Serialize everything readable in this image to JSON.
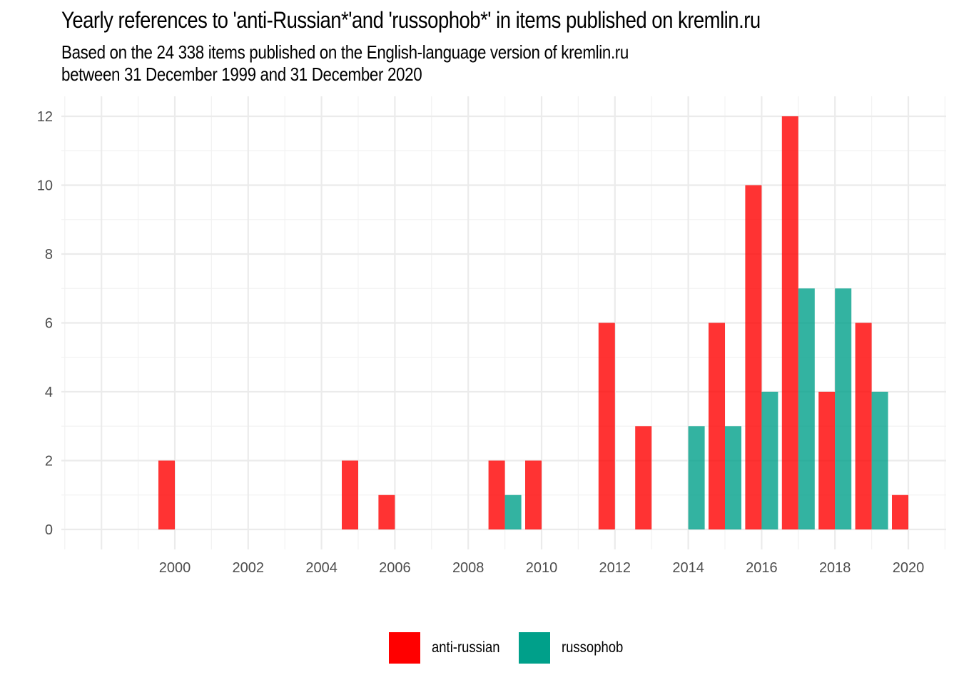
{
  "title": "Yearly references to 'anti-Russian*'and 'russophob*' in items published on kremlin.ru",
  "subtitle_line1": "Based on the 24 338 items published on the English-language version of kremlin.ru",
  "subtitle_line2": "between 31 December 1999 and 31 December 2020",
  "colors": {
    "anti_russian": "#ff0000",
    "russophob": "#00a08a",
    "grid_major": "#ebebeb",
    "grid_minor": "#f2f2f2",
    "tick_text": "#4d4d4d"
  },
  "chart_data": {
    "type": "bar",
    "xlabel": "",
    "ylabel": "",
    "x_ticks": [
      2000,
      2002,
      2004,
      2006,
      2008,
      2010,
      2012,
      2014,
      2016,
      2018,
      2020
    ],
    "y_ticks": [
      0,
      2,
      4,
      6,
      8,
      10,
      12
    ],
    "xlim": [
      1997,
      2021
    ],
    "ylim": [
      0,
      12.4
    ],
    "grid": true,
    "legend_position": "bottom",
    "bar_opacity": 0.8,
    "series": [
      {
        "name": "anti-russian",
        "color": "#ff0000",
        "points": [
          {
            "x": 2000,
            "y": 2
          },
          {
            "x": 2005,
            "y": 2
          },
          {
            "x": 2006,
            "y": 1
          },
          {
            "x": 2009,
            "y": 2
          },
          {
            "x": 2010,
            "y": 2
          },
          {
            "x": 2012,
            "y": 6
          },
          {
            "x": 2013,
            "y": 3
          },
          {
            "x": 2015,
            "y": 6
          },
          {
            "x": 2016,
            "y": 10
          },
          {
            "x": 2017,
            "y": 12
          },
          {
            "x": 2018,
            "y": 4
          },
          {
            "x": 2019,
            "y": 6
          },
          {
            "x": 2020,
            "y": 1
          }
        ]
      },
      {
        "name": "russophob",
        "color": "#00a08a",
        "points": [
          {
            "x": 2009,
            "y": 1
          },
          {
            "x": 2014,
            "y": 3
          },
          {
            "x": 2015,
            "y": 3
          },
          {
            "x": 2016,
            "y": 4
          },
          {
            "x": 2017,
            "y": 7
          },
          {
            "x": 2018,
            "y": 7
          },
          {
            "x": 2019,
            "y": 4
          }
        ]
      }
    ]
  },
  "legend": {
    "items": [
      {
        "label": "anti-russian",
        "color": "#ff0000"
      },
      {
        "label": "russophob",
        "color": "#00a08a"
      }
    ]
  }
}
